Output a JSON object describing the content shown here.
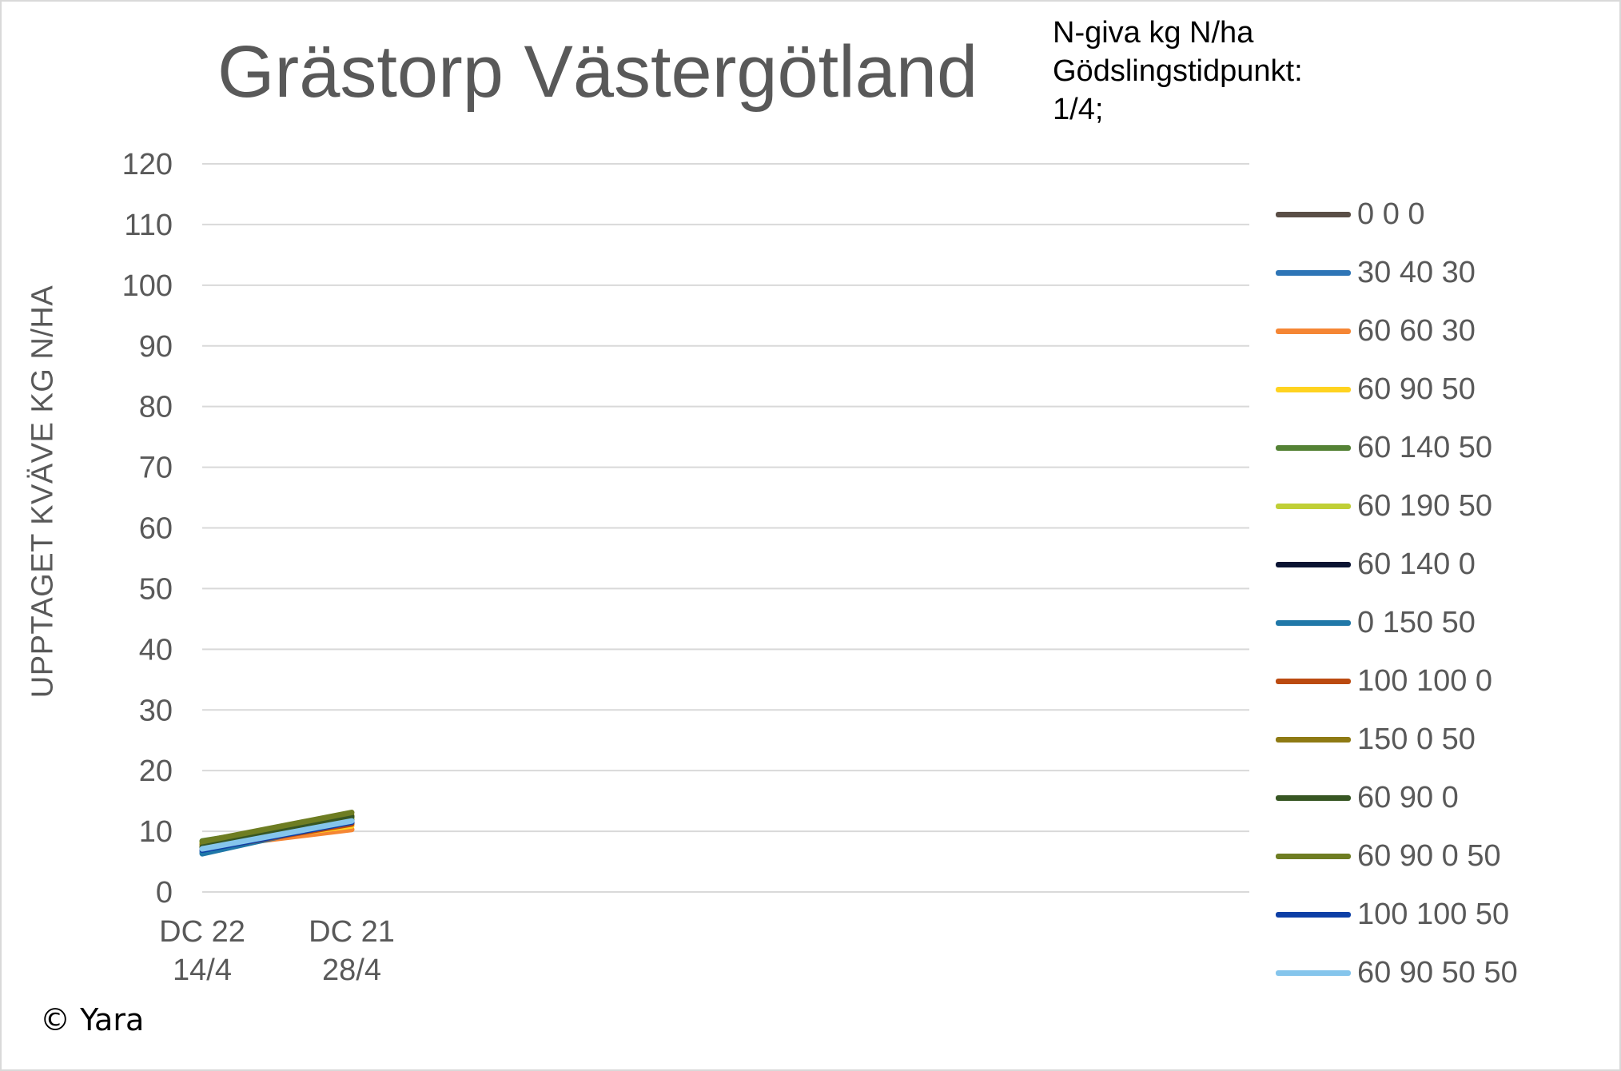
{
  "chart_data": {
    "type": "line",
    "title": "Grästorp Västergötland",
    "annotation": [
      "N-giva kg N/ha",
      "Gödslingstidpunkt:",
      "1/4;"
    ],
    "xlabel": "",
    "ylabel": "UPPTAGET KVÄVE KG N/HA",
    "ylim": [
      0,
      120
    ],
    "yticks": [
      0,
      10,
      20,
      30,
      40,
      50,
      60,
      70,
      80,
      90,
      100,
      110,
      120
    ],
    "grid": true,
    "legend_position": "right",
    "categories": [
      [
        "DC 22",
        "14/4"
      ],
      [
        "DC 21",
        "28/4"
      ]
    ],
    "series": [
      {
        "name": "0 0 0",
        "color": "#5a4e46",
        "values": [
          8.0,
          12.0
        ]
      },
      {
        "name": "30 40 30",
        "color": "#2e75b6",
        "values": [
          6.6,
          11.4
        ]
      },
      {
        "name": "60 60 30",
        "color": "#f58634",
        "values": [
          7.3,
          10.3
        ]
      },
      {
        "name": "60 90 50",
        "color": "#ffd320",
        "values": [
          7.6,
          10.9
        ]
      },
      {
        "name": "60 140 50",
        "color": "#548235",
        "values": [
          8.4,
          12.3
        ]
      },
      {
        "name": "60 190 50",
        "color": "#c0cf36",
        "values": [
          8.1,
          12.1
        ]
      },
      {
        "name": "60 140 0",
        "color": "#0b1433",
        "values": [
          7.2,
          11.6
        ]
      },
      {
        "name": "0 150 50",
        "color": "#2078a8",
        "values": [
          6.3,
          11.8
        ]
      },
      {
        "name": "100 100 0",
        "color": "#bb4a10",
        "values": [
          7.0,
          11.2
        ]
      },
      {
        "name": "150 0 50",
        "color": "#8e7a13",
        "values": [
          7.8,
          12.6
        ]
      },
      {
        "name": "60 90 0",
        "color": "#375623",
        "values": [
          7.4,
          12.4
        ]
      },
      {
        "name": "60 90 0 50",
        "color": "#6e7d22",
        "values": [
          8.3,
          13.1
        ]
      },
      {
        "name": "100 100 50",
        "color": "#0d3fa6",
        "values": [
          6.9,
          11.5
        ]
      },
      {
        "name": "60 90 50 50",
        "color": "#85c5ec",
        "values": [
          7.1,
          11.7
        ]
      }
    ]
  },
  "copyright": "© Yara"
}
